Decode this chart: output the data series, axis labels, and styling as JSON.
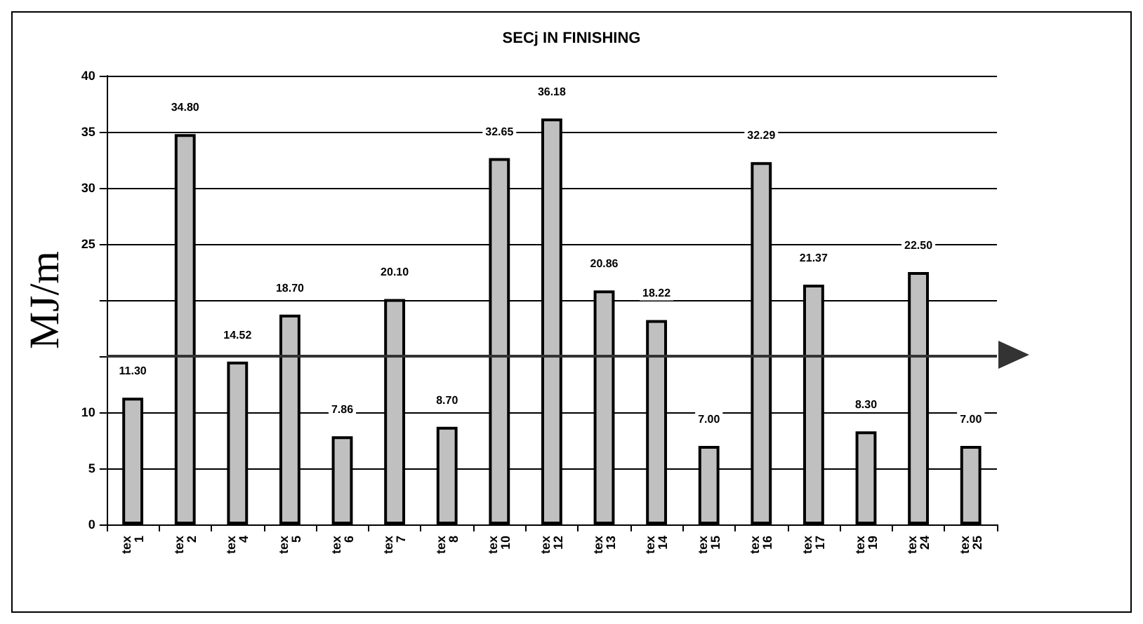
{
  "chart_data": {
    "type": "bar",
    "title": "SECj IN FINISHING",
    "ylabel": "MJ/m",
    "categories": [
      "tex 1",
      "tex 2",
      "tex 4",
      "tex 5",
      "tex 6",
      "tex 7",
      "tex 8",
      "tex 10",
      "tex 12",
      "tex 13",
      "tex 14",
      "tex 15",
      "tex 16",
      "tex 17",
      "tex 19",
      "tex 24",
      "tex 25"
    ],
    "values": [
      11.3,
      34.8,
      14.52,
      18.7,
      7.86,
      20.1,
      8.7,
      32.65,
      36.18,
      20.86,
      18.22,
      7.0,
      32.29,
      21.37,
      8.3,
      22.5,
      7.0
    ],
    "value_labels": [
      "11.30",
      "34.80",
      "14.52",
      "18.70",
      "7.86",
      "20.10",
      "8.70",
      "32.65",
      "36.18",
      "20.86",
      "18.22",
      "7.00",
      "32.29",
      "21.37",
      "8.30",
      "22.50",
      "7.00"
    ],
    "color": "#c0c0c0",
    "ylim": [
      0,
      40
    ],
    "yticks": [
      0,
      5,
      10,
      {
        "value": 15,
        "label": null
      },
      {
        "value": 20,
        "label": null
      },
      25,
      30,
      35,
      40
    ],
    "grid": "y",
    "ref_lines": [
      {
        "axis": "y",
        "value": 15,
        "color": "#333333",
        "line_style": "solid"
      }
    ]
  }
}
